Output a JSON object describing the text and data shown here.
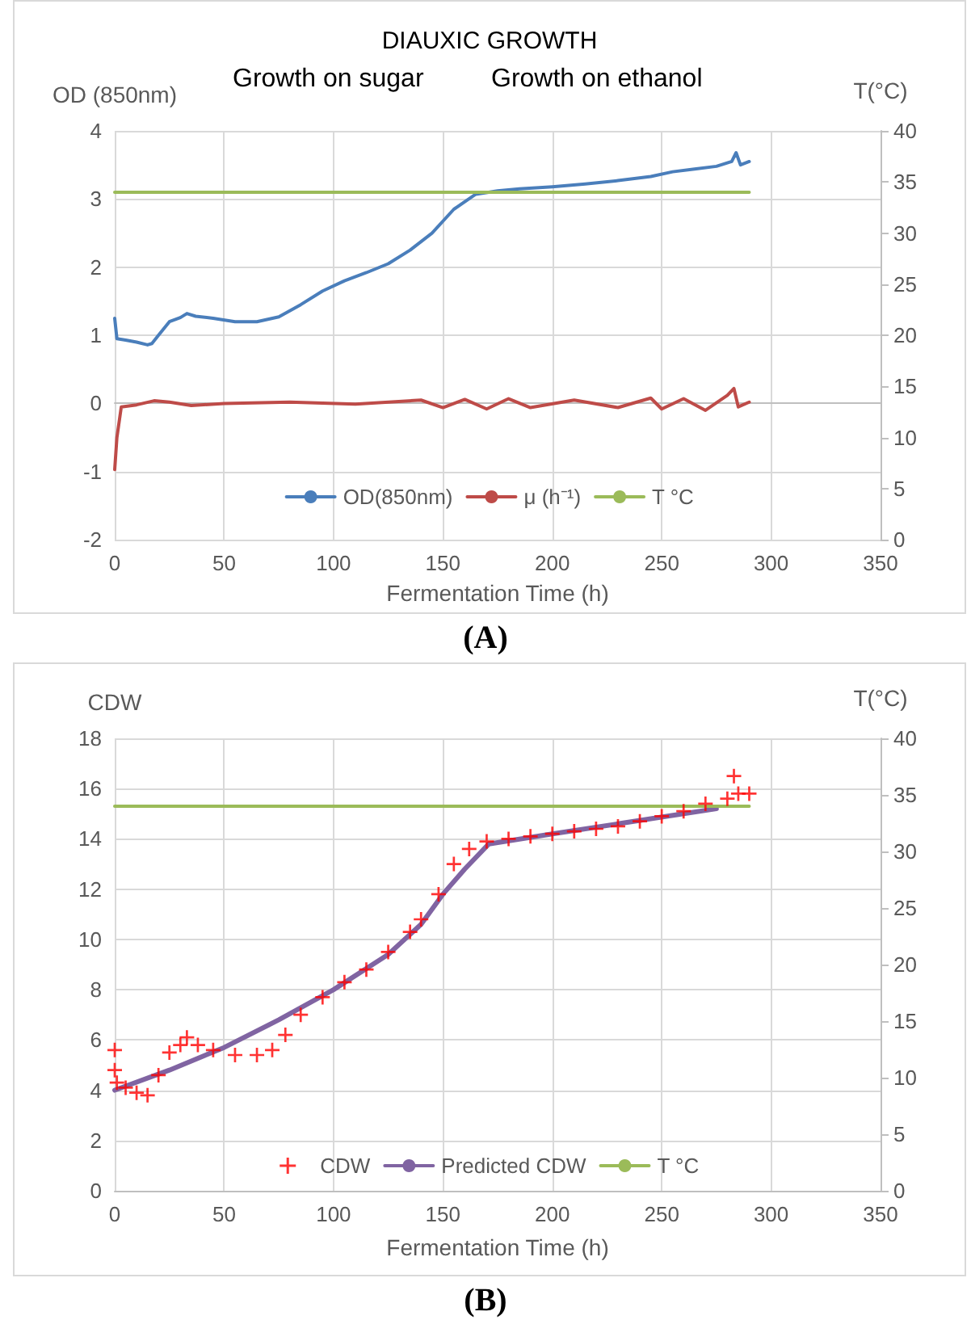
{
  "chart_data": [
    {
      "type": "line",
      "title": "DIAUXIC GROWTH",
      "ylabel": "OD (850nm)",
      "y2label": "T(°C)",
      "xlabel": "Fermentation Time (h)",
      "annotations": [
        "Growth on sugar",
        "Growth on ethanol",
        "(A)"
      ],
      "xlim": [
        0,
        350
      ],
      "xticks": [
        0,
        50,
        100,
        150,
        200,
        250,
        300,
        350
      ],
      "ylim": [
        -2,
        4
      ],
      "yticks": [
        -2,
        -1,
        0,
        1,
        2,
        3,
        4
      ],
      "y2lim": [
        0,
        40
      ],
      "y2ticks": [
        0,
        5,
        10,
        15,
        20,
        25,
        30,
        35,
        40
      ],
      "grid": true,
      "legend": "bottom",
      "marker": "none",
      "series": [
        {
          "name": "OD(850nm)",
          "color": "#4a7ebb",
          "x": [
            0,
            1,
            5,
            10,
            15,
            17,
            20,
            25,
            30,
            33,
            37,
            45,
            55,
            65,
            75,
            85,
            95,
            105,
            115,
            125,
            135,
            145,
            155,
            165,
            175,
            185,
            200,
            215,
            230,
            245,
            255,
            265,
            275,
            282,
            284,
            286,
            290
          ],
          "values": [
            1.25,
            0.95,
            0.93,
            0.9,
            0.86,
            0.88,
            1.0,
            1.2,
            1.26,
            1.32,
            1.28,
            1.25,
            1.2,
            1.2,
            1.27,
            1.45,
            1.65,
            1.8,
            1.92,
            2.05,
            2.25,
            2.5,
            2.85,
            3.07,
            3.12,
            3.15,
            3.18,
            3.22,
            3.27,
            3.33,
            3.4,
            3.44,
            3.48,
            3.55,
            3.68,
            3.5,
            3.55
          ]
        },
        {
          "name": "μ (h⁻¹)",
          "color": "#be4b48",
          "x": [
            0,
            1,
            3,
            10,
            18,
            25,
            35,
            50,
            80,
            110,
            140,
            150,
            160,
            170,
            180,
            190,
            210,
            230,
            245,
            250,
            260,
            270,
            280,
            283,
            285,
            290
          ],
          "values": [
            -0.97,
            -0.5,
            -0.05,
            -0.02,
            0.04,
            0.02,
            -0.03,
            0,
            0.02,
            -0.01,
            0.05,
            -0.06,
            0.06,
            -0.08,
            0.07,
            -0.06,
            0.05,
            -0.06,
            0.08,
            -0.08,
            0.07,
            -0.1,
            0.12,
            0.22,
            -0.05,
            0.02
          ]
        },
        {
          "name": "T °C",
          "color": "#9bbb59",
          "axis": "y2",
          "x": [
            0,
            290
          ],
          "values": [
            34,
            34
          ]
        }
      ]
    },
    {
      "type": "scatter",
      "ylabel": "CDW",
      "y2label": "T(°C)",
      "xlabel": "Fermentation Time (h)",
      "annotations": [
        "(B)"
      ],
      "xlim": [
        0,
        350
      ],
      "xticks": [
        0,
        50,
        100,
        150,
        200,
        250,
        300,
        350
      ],
      "ylim": [
        0,
        18
      ],
      "yticks": [
        0,
        2,
        4,
        6,
        8,
        10,
        12,
        14,
        16,
        18
      ],
      "y2lim": [
        0,
        40
      ],
      "y2ticks": [
        0,
        5,
        10,
        15,
        20,
        25,
        30,
        35,
        40
      ],
      "grid": true,
      "legend": "bottom",
      "series": [
        {
          "name": "CDW",
          "marker": "cross",
          "color": "#ff0000",
          "x": [
            0,
            0,
            1,
            5,
            10,
            15,
            20,
            25,
            30,
            33,
            38,
            45,
            55,
            65,
            72,
            78,
            85,
            95,
            105,
            115,
            125,
            135,
            140,
            148,
            155,
            162,
            170,
            180,
            190,
            200,
            210,
            220,
            230,
            240,
            250,
            260,
            270,
            280,
            283,
            285,
            290
          ],
          "values": [
            5.6,
            4.8,
            4.3,
            4.1,
            3.9,
            3.8,
            4.6,
            5.5,
            5.8,
            6.1,
            5.8,
            5.6,
            5.4,
            5.4,
            5.6,
            6.2,
            7.0,
            7.7,
            8.3,
            8.8,
            9.5,
            10.3,
            10.8,
            11.8,
            13.0,
            13.6,
            13.9,
            14.0,
            14.1,
            14.2,
            14.3,
            14.4,
            14.5,
            14.7,
            14.9,
            15.1,
            15.4,
            15.6,
            16.5,
            15.8,
            15.8
          ]
        },
        {
          "name": "Predicted CDW",
          "type": "line",
          "marker": "none",
          "color": "#8064a2",
          "x": [
            0,
            25,
            50,
            75,
            100,
            125,
            140,
            150,
            160,
            171,
            200,
            230,
            260,
            275
          ],
          "values": [
            4.0,
            4.8,
            5.7,
            6.8,
            8.0,
            9.4,
            10.6,
            11.8,
            12.8,
            13.8,
            14.2,
            14.6,
            15.0,
            15.2
          ]
        },
        {
          "name": "T °C",
          "type": "line",
          "marker": "none",
          "axis": "y2",
          "color": "#9bbb59",
          "x": [
            0,
            290
          ],
          "values": [
            34,
            34
          ]
        }
      ]
    }
  ]
}
